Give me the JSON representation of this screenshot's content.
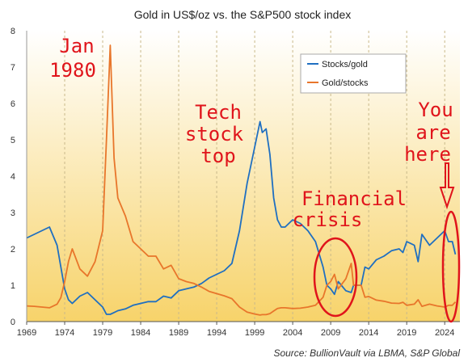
{
  "source_text": "Source:  BullionVault via LBMA, S&P Global",
  "colors": {
    "stocks_gold": "#1f6fc1",
    "gold_stocks": "#e8762b",
    "annotation": "#e0141b",
    "bg_top": "#ffffff",
    "bg_bottom": "#f7d36a"
  },
  "annotations": [
    {
      "lines": [
        "Jan",
        "1980"
      ]
    },
    {
      "lines": [
        "Tech",
        "stock",
        "top"
      ]
    },
    {
      "lines": [
        "Financial",
        "crisis"
      ]
    },
    {
      "lines": [
        "You",
        "are",
        "here"
      ]
    }
  ],
  "chart_data": {
    "type": "line",
    "title": "Gold in US$/oz vs. the S&P500 stock index",
    "xlabel": "",
    "ylabel": "",
    "xlim": [
      1969,
      2026
    ],
    "ylim": [
      0,
      8
    ],
    "x_ticks": [
      "1969",
      "1974",
      "1979",
      "1984",
      "1989",
      "1994",
      "1999",
      "2004",
      "2009",
      "2014",
      "2019",
      "2024"
    ],
    "y_ticks": [
      "0",
      "1",
      "2",
      "3",
      "4",
      "5",
      "6",
      "7",
      "8"
    ],
    "grid": "vertical dashed",
    "legend_position": "top-right",
    "series": [
      {
        "name": "Stocks/gold",
        "x": [
          1969,
          1970,
          1971,
          1972,
          1973,
          1973.5,
          1974,
          1974.5,
          1975,
          1976,
          1977,
          1978,
          1979,
          1979.5,
          1980,
          1980.5,
          1981,
          1982,
          1983,
          1984,
          1985,
          1986,
          1987,
          1988,
          1989,
          1990,
          1991,
          1992,
          1993,
          1994,
          1995,
          1996,
          1997,
          1998,
          1999,
          1999.7,
          2000,
          2000.5,
          2001,
          2001.5,
          2002,
          2002.5,
          2003,
          2004,
          2005,
          2006,
          2007,
          2008,
          2008.5,
          2009,
          2009.5,
          2010,
          2011,
          2011.7,
          2012,
          2013,
          2013.5,
          2014,
          2015,
          2016,
          2017,
          2018,
          2018.5,
          2019,
          2020,
          2020.5,
          2021,
          2022,
          2023,
          2024,
          2024.5,
          2025,
          2025.4
        ],
        "y": [
          2.3,
          2.4,
          2.5,
          2.6,
          2.1,
          1.5,
          0.9,
          0.6,
          0.5,
          0.7,
          0.8,
          0.6,
          0.4,
          0.2,
          0.2,
          0.25,
          0.3,
          0.35,
          0.45,
          0.5,
          0.55,
          0.55,
          0.7,
          0.65,
          0.85,
          0.9,
          0.95,
          1.05,
          1.2,
          1.3,
          1.4,
          1.6,
          2.5,
          3.8,
          4.8,
          5.5,
          5.2,
          5.3,
          4.6,
          3.4,
          2.8,
          2.6,
          2.6,
          2.8,
          2.7,
          2.5,
          2.2,
          1.5,
          1.0,
          0.9,
          0.75,
          1.1,
          0.85,
          0.8,
          1.0,
          1.0,
          1.5,
          1.45,
          1.7,
          1.8,
          1.95,
          2.0,
          1.9,
          2.2,
          2.1,
          1.65,
          2.4,
          2.1,
          2.3,
          2.5,
          2.2,
          2.2,
          1.85
        ]
      },
      {
        "name": "Gold/stocks",
        "x": [
          1969,
          1970,
          1971,
          1972,
          1973,
          1973.5,
          1974,
          1974.5,
          1975,
          1976,
          1977,
          1978,
          1979,
          1979.5,
          1980,
          1980.5,
          1981,
          1982,
          1983,
          1984,
          1985,
          1986,
          1987,
          1988,
          1989,
          1990,
          1991,
          1992,
          1993,
          1994,
          1995,
          1996,
          1997,
          1998,
          1999,
          1999.7,
          2000,
          2000.5,
          2001,
          2001.5,
          2002,
          2002.5,
          2003,
          2004,
          2005,
          2006,
          2007,
          2008,
          2008.5,
          2009,
          2009.5,
          2010,
          2011,
          2011.7,
          2012,
          2013,
          2013.5,
          2014,
          2015,
          2016,
          2017,
          2018,
          2018.5,
          2019,
          2020,
          2020.5,
          2021,
          2022,
          2023,
          2024,
          2024.5,
          2025,
          2025.4
        ],
        "y": [
          0.43,
          0.42,
          0.4,
          0.38,
          0.48,
          0.66,
          1.1,
          1.65,
          2.0,
          1.45,
          1.25,
          1.65,
          2.5,
          5.0,
          7.6,
          4.5,
          3.4,
          2.9,
          2.2,
          2.0,
          1.8,
          1.8,
          1.45,
          1.55,
          1.18,
          1.1,
          1.05,
          0.95,
          0.83,
          0.77,
          0.71,
          0.63,
          0.4,
          0.26,
          0.21,
          0.18,
          0.19,
          0.19,
          0.22,
          0.29,
          0.36,
          0.38,
          0.38,
          0.36,
          0.37,
          0.4,
          0.45,
          0.67,
          1.0,
          1.1,
          1.3,
          0.9,
          1.18,
          1.6,
          1.0,
          1.0,
          0.67,
          0.69,
          0.59,
          0.56,
          0.51,
          0.5,
          0.53,
          0.45,
          0.48,
          0.6,
          0.42,
          0.48,
          0.43,
          0.4,
          0.45,
          0.45,
          0.54
        ]
      }
    ]
  }
}
